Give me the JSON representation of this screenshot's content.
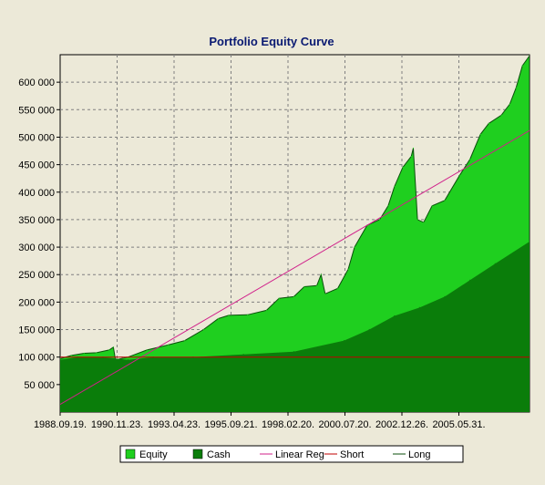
{
  "chart_data": {
    "type": "area",
    "title": "Portfolio Equity Curve",
    "xlabel": "",
    "ylabel": "",
    "x_tick_labels": [
      "1988.09.19.",
      "1990.11.23.",
      "1993.04.23.",
      "1995.09.21.",
      "1998.02.20.",
      "2000.07.20.",
      "2002.12.26.",
      "2005.05.31."
    ],
    "y_tick_labels": [
      "50 000",
      "100 000",
      "150 000",
      "200 000",
      "250 000",
      "300 000",
      "350 000",
      "400 000",
      "450 000",
      "500 000",
      "550 000",
      "600 000"
    ],
    "y_ticks": [
      50000,
      100000,
      150000,
      200000,
      250000,
      300000,
      350000,
      400000,
      450000,
      500000,
      550000,
      600000
    ],
    "ylim": [
      0,
      650000
    ],
    "x_range": [
      "1988-09-19",
      "2007-05-15"
    ],
    "grid": true,
    "legend_position": "bottom",
    "series": [
      {
        "name": "Equity",
        "color": "#1fcf1f",
        "points": [
          [
            "1988-09-19",
            97000
          ],
          [
            "1989-03-01",
            103000
          ],
          [
            "1989-09-01",
            107000
          ],
          [
            "1990-03-01",
            108000
          ],
          [
            "1990-09-01",
            113000
          ],
          [
            "1990-11-01",
            118000
          ],
          [
            "1990-12-01",
            95000
          ],
          [
            "1991-06-01",
            100000
          ],
          [
            "1992-03-01",
            113000
          ],
          [
            "1993-01-01",
            122000
          ],
          [
            "1993-09-01",
            130000
          ],
          [
            "1994-06-01",
            150000
          ],
          [
            "1995-01-01",
            170000
          ],
          [
            "1995-06-01",
            176000
          ],
          [
            "1996-03-01",
            177000
          ],
          [
            "1996-12-01",
            185000
          ],
          [
            "1997-06-01",
            207000
          ],
          [
            "1998-01-01",
            210000
          ],
          [
            "1998-06-01",
            228000
          ],
          [
            "1998-12-01",
            230000
          ],
          [
            "1999-02-01",
            250000
          ],
          [
            "1999-04-01",
            215000
          ],
          [
            "1999-10-01",
            225000
          ],
          [
            "2000-03-01",
            260000
          ],
          [
            "2000-06-01",
            300000
          ],
          [
            "2000-12-01",
            340000
          ],
          [
            "2001-06-01",
            350000
          ],
          [
            "2001-10-01",
            375000
          ],
          [
            "2002-01-01",
            410000
          ],
          [
            "2002-05-01",
            445000
          ],
          [
            "2002-09-01",
            465000
          ],
          [
            "2002-10-01",
            480000
          ],
          [
            "2002-12-01",
            350000
          ],
          [
            "2003-03-01",
            345000
          ],
          [
            "2003-07-01",
            375000
          ],
          [
            "2004-01-01",
            385000
          ],
          [
            "2004-08-01",
            430000
          ],
          [
            "2005-01-01",
            460000
          ],
          [
            "2005-06-01",
            505000
          ],
          [
            "2005-10-01",
            525000
          ],
          [
            "2006-04-01",
            540000
          ],
          [
            "2006-08-01",
            560000
          ],
          [
            "2006-11-01",
            590000
          ],
          [
            "2007-02-01",
            630000
          ],
          [
            "2007-05-15",
            648000
          ]
        ]
      },
      {
        "name": "Cash",
        "color": "#0a7d0a",
        "points": [
          [
            "1988-09-19",
            95000
          ],
          [
            "1989-06-01",
            100000
          ],
          [
            "1990-06-01",
            100000
          ],
          [
            "1991-06-01",
            95000
          ],
          [
            "1992-06-01",
            100000
          ],
          [
            "1994-01-01",
            100000
          ],
          [
            "1996-01-01",
            105000
          ],
          [
            "1998-01-01",
            110000
          ],
          [
            "2000-01-01",
            130000
          ],
          [
            "2001-01-01",
            150000
          ],
          [
            "2002-01-01",
            175000
          ],
          [
            "2003-01-01",
            190000
          ],
          [
            "2004-01-01",
            210000
          ],
          [
            "2005-01-01",
            240000
          ],
          [
            "2006-01-01",
            270000
          ],
          [
            "2007-05-15",
            310000
          ]
        ]
      },
      {
        "name": "Linear Reg",
        "color": "#d0208a",
        "points": [
          [
            "1988-09-19",
            14000
          ],
          [
            "2007-05-15",
            512000
          ]
        ]
      },
      {
        "name": "Short",
        "color": "#c00000",
        "points": [
          [
            "1988-09-19",
            100000
          ],
          [
            "2007-05-15",
            100000
          ]
        ]
      },
      {
        "name": "Long",
        "color": "#0b4f0b",
        "points": []
      }
    ]
  }
}
